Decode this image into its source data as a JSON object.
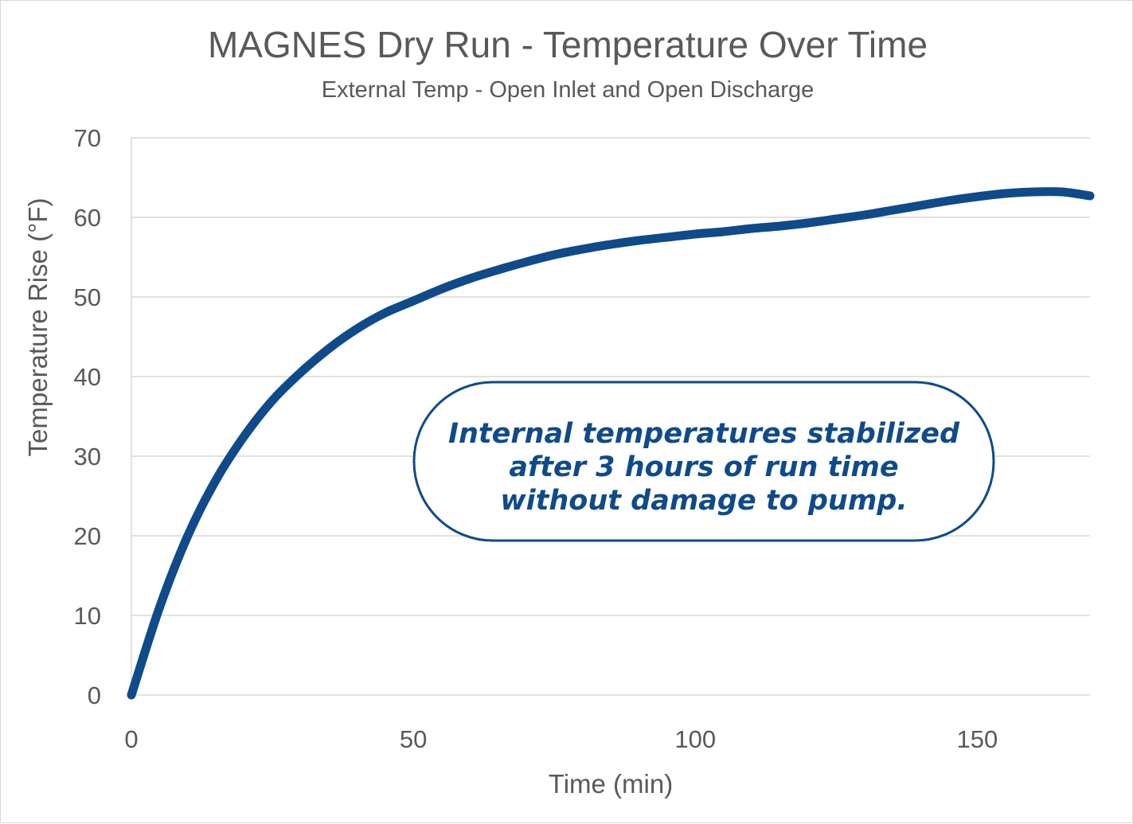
{
  "chart_data": {
    "type": "line",
    "title": "MAGNES Dry Run - Temperature Over Time",
    "subtitle": "External Temp - Open Inlet and Open Discharge",
    "xlabel": "Time (min)",
    "ylabel": "Temperature Rise (°F)",
    "xlim": [
      0,
      170
    ],
    "ylim": [
      0,
      70
    ],
    "x_ticks": [
      "0",
      "50",
      "100",
      "150"
    ],
    "y_ticks": [
      "0",
      "10",
      "20",
      "30",
      "40",
      "50",
      "60",
      "70"
    ],
    "grid": "horizontal",
    "legend": "none",
    "line_color": "#0f4a8a",
    "series": [
      {
        "x": [
          0,
          5,
          10,
          15,
          20,
          25,
          30,
          35,
          40,
          45,
          50,
          55,
          60,
          65,
          70,
          75,
          80,
          85,
          90,
          95,
          100,
          105,
          110,
          115,
          120,
          125,
          130,
          135,
          140,
          145,
          150,
          155,
          160,
          165,
          170
        ],
        "values": [
          0,
          11,
          20,
          27,
          32.5,
          37,
          40.5,
          43.5,
          46,
          48,
          49.5,
          51,
          52.3,
          53.4,
          54.4,
          55.3,
          56,
          56.6,
          57.1,
          57.5,
          57.9,
          58.2,
          58.6,
          58.9,
          59.3,
          59.8,
          60.3,
          60.9,
          61.5,
          62.1,
          62.6,
          63,
          63.2,
          63.2,
          62.7
        ]
      }
    ],
    "annotation": {
      "lines": [
        "Internal temperatures stabilized",
        "after 3 hours of run time",
        "without damage to pump."
      ],
      "border_color": "#0f4a8a"
    }
  }
}
